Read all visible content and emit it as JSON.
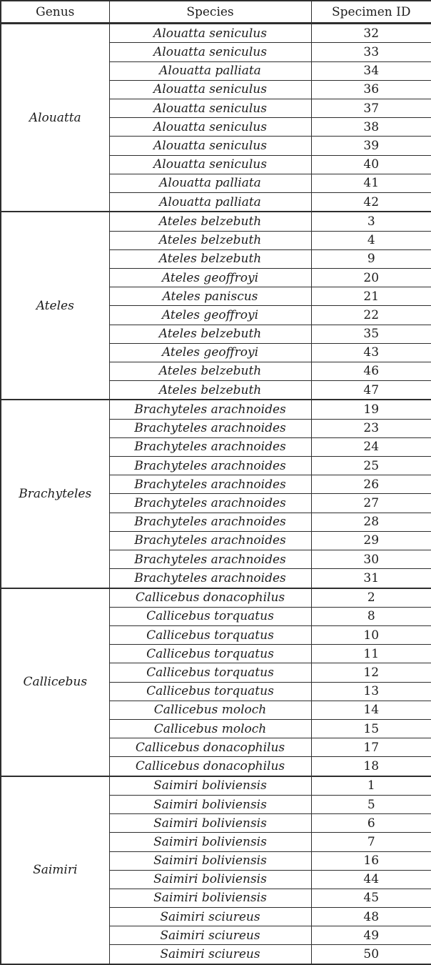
{
  "table": {
    "headers": {
      "genus": "Genus",
      "species": "Species",
      "specimen_id": "Specimen ID"
    },
    "border_color": "#2e2e2e",
    "text_color": "#1c1c1c",
    "groups": [
      {
        "genus": "Alouatta",
        "rows": [
          {
            "species": "Alouatta seniculus",
            "id": "32"
          },
          {
            "species": "Alouatta seniculus",
            "id": "33"
          },
          {
            "species": "Alouatta palliata",
            "id": "34"
          },
          {
            "species": "Alouatta seniculus",
            "id": "36"
          },
          {
            "species": "Alouatta seniculus",
            "id": "37"
          },
          {
            "species": "Alouatta seniculus",
            "id": "38"
          },
          {
            "species": "Alouatta seniculus",
            "id": "39"
          },
          {
            "species": "Alouatta seniculus",
            "id": "40"
          },
          {
            "species": "Alouatta palliata",
            "id": "41"
          },
          {
            "species": "Alouatta palliata",
            "id": "42"
          }
        ]
      },
      {
        "genus": "Ateles",
        "rows": [
          {
            "species": "Ateles belzebuth",
            "id": "3"
          },
          {
            "species": "Ateles belzebuth",
            "id": "4"
          },
          {
            "species": "Ateles belzebuth",
            "id": "9"
          },
          {
            "species": "Ateles geoffroyi",
            "id": "20"
          },
          {
            "species": "Ateles paniscus",
            "id": "21"
          },
          {
            "species": "Ateles geoffroyi",
            "id": "22"
          },
          {
            "species": "Ateles belzebuth",
            "id": "35"
          },
          {
            "species": "Ateles geoffroyi",
            "id": "43"
          },
          {
            "species": "Ateles belzebuth",
            "id": "46"
          },
          {
            "species": "Ateles belzebuth",
            "id": "47"
          }
        ]
      },
      {
        "genus": "Brachyteles",
        "rows": [
          {
            "species": "Brachyteles arachnoides",
            "id": "19"
          },
          {
            "species": "Brachyteles arachnoides",
            "id": "23"
          },
          {
            "species": "Brachyteles arachnoides",
            "id": "24"
          },
          {
            "species": "Brachyteles arachnoides",
            "id": "25"
          },
          {
            "species": "Brachyteles arachnoides",
            "id": "26"
          },
          {
            "species": "Brachyteles arachnoides",
            "id": "27"
          },
          {
            "species": "Brachyteles arachnoides",
            "id": "28"
          },
          {
            "species": "Brachyteles arachnoides",
            "id": "29"
          },
          {
            "species": "Brachyteles arachnoides",
            "id": "30"
          },
          {
            "species": "Brachyteles arachnoides",
            "id": "31"
          }
        ]
      },
      {
        "genus": "Callicebus",
        "rows": [
          {
            "species": "Callicebus donacophilus",
            "id": "2"
          },
          {
            "species": "Callicebus torquatus",
            "id": "8"
          },
          {
            "species": "Callicebus torquatus",
            "id": "10"
          },
          {
            "species": "Callicebus torquatus",
            "id": "11"
          },
          {
            "species": "Callicebus torquatus",
            "id": "12"
          },
          {
            "species": "Callicebus torquatus",
            "id": "13"
          },
          {
            "species": "Callicebus moloch",
            "id": "14"
          },
          {
            "species": "Callicebus moloch",
            "id": "15"
          },
          {
            "species": "Callicebus donacophilus",
            "id": "17"
          },
          {
            "species": "Callicebus donacophilus",
            "id": "18"
          }
        ]
      },
      {
        "genus": "Saimiri",
        "rows": [
          {
            "species": "Saimiri boliviensis",
            "id": "1"
          },
          {
            "species": "Saimiri boliviensis",
            "id": "5"
          },
          {
            "species": "Saimiri boliviensis",
            "id": "6"
          },
          {
            "species": "Saimiri boliviensis",
            "id": "7"
          },
          {
            "species": "Saimiri boliviensis",
            "id": "16"
          },
          {
            "species": "Saimiri boliviensis",
            "id": "44"
          },
          {
            "species": "Saimiri boliviensis",
            "id": "45"
          },
          {
            "species": "Saimiri sciureus",
            "id": "48"
          },
          {
            "species": "Saimiri sciureus",
            "id": "49"
          },
          {
            "species": "Saimiri sciureus",
            "id": "50"
          }
        ]
      }
    ]
  }
}
